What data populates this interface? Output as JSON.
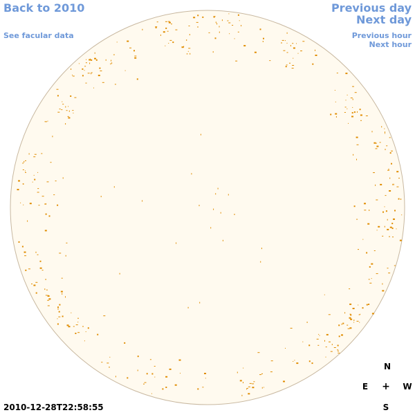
{
  "nav": {
    "back": "Back to 2010",
    "facular": "See facular data",
    "prev_day": "Previous day",
    "next_day": "Next day",
    "prev_hour": "Previous hour",
    "next_hour": "Next hour"
  },
  "timestamp": "2010-12-28T22:58:55",
  "compass": {
    "north": "N",
    "south": "S",
    "east": "E",
    "west": "W",
    "center": "+"
  },
  "colors": {
    "link": "#6f99d9",
    "disk_fill": "#fffaef",
    "disk_border": "#c8b8a0",
    "facula": "#e08c00"
  }
}
